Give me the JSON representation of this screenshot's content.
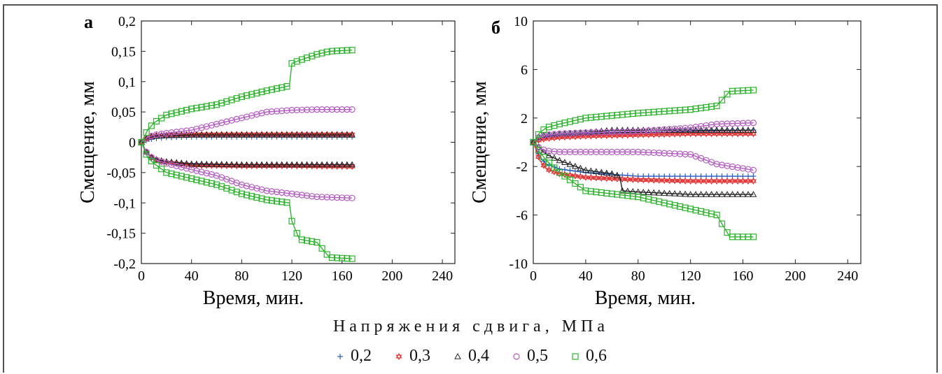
{
  "legend": {
    "title": "Напряжения сдвига, МПа",
    "entries": [
      {
        "label": "0,2",
        "color": "#2b5fbf",
        "marker": "plus"
      },
      {
        "label": "0,3",
        "color": "#e03030",
        "marker": "star"
      },
      {
        "label": "0,4",
        "color": "#222222",
        "marker": "triangle"
      },
      {
        "label": "0,5",
        "color": "#b35cc0",
        "marker": "circle"
      },
      {
        "label": "0,6",
        "color": "#2fb32f",
        "marker": "square"
      }
    ]
  },
  "chart_data": [
    {
      "panel": "а",
      "type": "scatter",
      "xlabel": "Время, мин.",
      "ylabel": "Смещение, мм",
      "xlim": [
        0,
        250
      ],
      "ylim": [
        -0.2,
        0.2
      ],
      "xticks": [
        "0",
        "40",
        "80",
        "120",
        "160",
        "200",
        "240"
      ],
      "yticks": [
        "0,2",
        "0,15",
        "0,1",
        "0,05",
        "0",
        "-0,05",
        "-0,1",
        "-0,15",
        "-0,2"
      ],
      "series": [
        {
          "name": "0,2",
          "x": [
            0,
            5,
            10,
            20,
            40,
            80,
            120,
            168
          ],
          "y_upper": [
            0,
            0.004,
            0.006,
            0.008,
            0.009,
            0.009,
            0.009,
            0.009
          ],
          "y_lower": [
            0,
            -0.02,
            -0.028,
            -0.032,
            -0.035,
            -0.037,
            -0.037,
            -0.037
          ]
        },
        {
          "name": "0,3",
          "x": [
            0,
            5,
            10,
            20,
            40,
            80,
            120,
            168
          ],
          "y_upper": [
            0,
            0.008,
            0.011,
            0.012,
            0.013,
            0.013,
            0.013,
            0.013
          ],
          "y_lower": [
            0,
            -0.02,
            -0.027,
            -0.033,
            -0.038,
            -0.039,
            -0.039,
            -0.04
          ]
        },
        {
          "name": "0,4",
          "x": [
            0,
            5,
            10,
            20,
            40,
            80,
            120,
            168
          ],
          "y_upper": [
            0,
            0.007,
            0.01,
            0.011,
            0.012,
            0.012,
            0.012,
            0.012
          ],
          "y_lower": [
            0,
            -0.02,
            -0.028,
            -0.032,
            -0.036,
            -0.037,
            -0.037,
            -0.037
          ]
        },
        {
          "name": "0,5",
          "x": [
            0,
            5,
            10,
            20,
            40,
            60,
            80,
            100,
            120,
            140,
            168
          ],
          "y_upper": [
            0,
            0.008,
            0.012,
            0.015,
            0.02,
            0.03,
            0.04,
            0.05,
            0.053,
            0.054,
            0.054
          ],
          "y_lower": [
            0,
            -0.02,
            -0.028,
            -0.035,
            -0.045,
            -0.055,
            -0.07,
            -0.08,
            -0.085,
            -0.09,
            -0.092
          ]
        },
        {
          "name": "0,6",
          "x": [
            0,
            5,
            10,
            20,
            40,
            60,
            80,
            100,
            118,
            120,
            126,
            140,
            150,
            168
          ],
          "y_upper": [
            0,
            0.02,
            0.032,
            0.045,
            0.055,
            0.062,
            0.075,
            0.085,
            0.093,
            0.13,
            0.135,
            0.145,
            0.15,
            0.152
          ],
          "y_lower": [
            0,
            -0.025,
            -0.035,
            -0.05,
            -0.06,
            -0.07,
            -0.085,
            -0.095,
            -0.1,
            -0.13,
            -0.16,
            -0.165,
            -0.19,
            -0.192
          ]
        }
      ]
    },
    {
      "panel": "б",
      "type": "scatter",
      "xlabel": "Время, мин.",
      "ylabel": "Смещение, мм",
      "xlim": [
        0,
        250
      ],
      "ylim": [
        -10,
        10
      ],
      "xticks": [
        "0",
        "40",
        "80",
        "120",
        "160",
        "200",
        "240"
      ],
      "yticks": [
        "10",
        "6",
        "2",
        "-2",
        "-6",
        "-10"
      ],
      "series": [
        {
          "name": "0,2",
          "x": [
            0,
            5,
            10,
            20,
            40,
            80,
            120,
            168
          ],
          "y_upper": [
            0,
            0.3,
            0.5,
            0.6,
            0.7,
            0.8,
            0.9,
            1.0
          ],
          "y_lower": [
            0,
            -1.2,
            -1.8,
            -2.2,
            -2.5,
            -2.8,
            -2.8,
            -2.8
          ]
        },
        {
          "name": "0,3",
          "x": [
            0,
            5,
            10,
            20,
            40,
            80,
            120,
            168
          ],
          "y_upper": [
            0,
            0.2,
            0.3,
            0.4,
            0.5,
            0.6,
            0.7,
            0.7
          ],
          "y_lower": [
            0,
            -1.5,
            -2.2,
            -2.6,
            -2.9,
            -3.1,
            -3.2,
            -3.2
          ]
        },
        {
          "name": "0,4",
          "x": [
            0,
            5,
            10,
            20,
            40,
            60,
            66,
            68,
            80,
            120,
            168
          ],
          "y_upper": [
            0,
            0.5,
            0.6,
            0.7,
            0.8,
            1.0,
            1.0,
            1.0,
            1.0,
            1.0,
            1.0
          ],
          "y_lower": [
            0,
            -0.5,
            -1.0,
            -1.5,
            -2.3,
            -2.6,
            -2.8,
            -4.0,
            -4.1,
            -4.3,
            -4.3
          ]
        },
        {
          "name": "0,5",
          "x": [
            0,
            5,
            10,
            20,
            40,
            80,
            120,
            140,
            168
          ],
          "y_upper": [
            0,
            0.5,
            0.6,
            0.7,
            0.8,
            0.9,
            1.2,
            1.5,
            1.6
          ],
          "y_lower": [
            0,
            -0.5,
            -0.7,
            -0.8,
            -0.8,
            -0.8,
            -1.0,
            -1.8,
            -2.3
          ]
        },
        {
          "name": "0,6",
          "x": [
            0,
            5,
            10,
            20,
            40,
            80,
            120,
            140,
            150,
            168
          ],
          "y_upper": [
            0,
            0.8,
            1.2,
            1.5,
            2.0,
            2.4,
            2.7,
            3.0,
            4.2,
            4.3
          ],
          "y_lower": [
            0,
            -0.8,
            -1.5,
            -2.5,
            -4.0,
            -4.5,
            -5.5,
            -6.0,
            -7.8,
            -7.8
          ]
        }
      ]
    }
  ]
}
